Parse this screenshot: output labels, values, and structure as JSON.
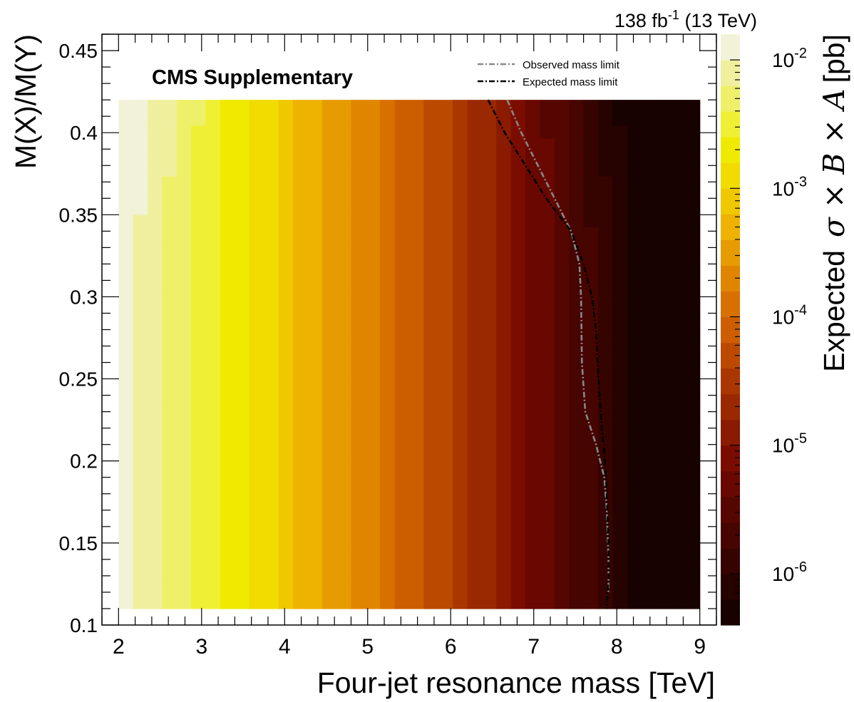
{
  "chart_data": {
    "type": "heatmap",
    "title": "",
    "subtitle": "",
    "label_cms": "CMS Supplementary",
    "lumi_main": "138 fb",
    "lumi_sup": "-1",
    "lumi_energy": " (13 TeV)",
    "xlabel": "Four-jet resonance mass [TeV]",
    "ylabel": "M(X)/M(Y)",
    "zlabel_prefix": "Expected",
    "zlabel_math": "σ × B × A",
    "zlabel_unit": "[pb]",
    "xlim": [
      1.8,
      9.2
    ],
    "ylim": [
      0.1,
      0.46
    ],
    "zlim_log10": [
      -6.4,
      -1.8
    ],
    "x_ticks": [
      2,
      3,
      4,
      5,
      6,
      7,
      8,
      9
    ],
    "x_tick_labels": [
      "2",
      "3",
      "4",
      "5",
      "6",
      "7",
      "8",
      "9"
    ],
    "y_ticks": [
      0.1,
      0.15,
      0.2,
      0.25,
      0.3,
      0.35,
      0.4,
      0.45
    ],
    "y_tick_labels": [
      "0.1",
      "0.15",
      "0.2",
      "0.25",
      "0.3",
      "0.35",
      "0.4",
      "0.45"
    ],
    "z_tick_labels": [
      {
        "base": "10",
        "exp": "-2",
        "log10": -2
      },
      {
        "base": "10",
        "exp": "-3",
        "log10": -3
      },
      {
        "base": "10",
        "exp": "-4",
        "log10": -4
      },
      {
        "base": "10",
        "exp": "-5",
        "log10": -5
      },
      {
        "base": "10",
        "exp": "-6",
        "log10": -6
      }
    ],
    "palette": [
      "#170200",
      "#260300",
      "#360400",
      "#460500",
      "#560600",
      "#680800",
      "#7a0d00",
      "#8a1a00",
      "#9a2800",
      "#aa3600",
      "#bb4a00",
      "#cc5e00",
      "#d87000",
      "#e08500",
      "#e69b00",
      "#edb300",
      "#f0c800",
      "#f2dc00",
      "#f0ea00",
      "#eff033",
      "#eef06a",
      "#efef9e",
      "#f2f2d8"
    ],
    "grid": false,
    "legend_position": "top-right",
    "series": [
      {
        "name": "Observed mass limit",
        "color": "#888888",
        "dash": "8,3,2,3",
        "x": [
          6.68,
          6.85,
          7.05,
          7.25,
          7.45,
          7.55,
          7.57,
          7.58,
          7.62,
          7.75,
          7.85,
          7.88,
          7.9,
          7.9
        ],
        "y": [
          0.42,
          0.4,
          0.38,
          0.36,
          0.34,
          0.32,
          0.3,
          0.26,
          0.23,
          0.21,
          0.19,
          0.17,
          0.14,
          0.12
        ]
      },
      {
        "name": "Expected mass limit",
        "color": "#000000",
        "dash": "8,3,2,3",
        "x": [
          6.45,
          6.65,
          6.9,
          7.15,
          7.45,
          7.6,
          7.7,
          7.75,
          7.78,
          7.82,
          7.86,
          7.88,
          7.9,
          7.9,
          7.88
        ],
        "y": [
          0.42,
          0.4,
          0.38,
          0.36,
          0.34,
          0.32,
          0.3,
          0.28,
          0.25,
          0.22,
          0.2,
          0.18,
          0.15,
          0.13,
          0.11
        ]
      }
    ]
  }
}
